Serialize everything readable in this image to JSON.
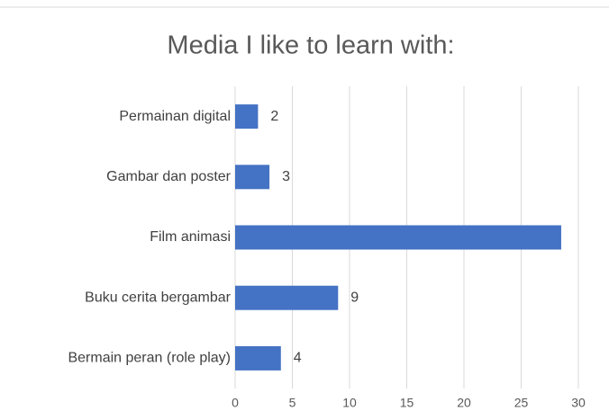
{
  "chart_data": {
    "type": "barh",
    "title": "Media I like to learn with:",
    "categories": [
      "Permainan digital",
      "Gambar dan poster",
      "Film animasi",
      "Buku cerita bergambar",
      "Bermain peran (role play)"
    ],
    "values": [
      2,
      3,
      28.5,
      9,
      4
    ],
    "value_labels": [
      "2",
      "3",
      null,
      "9",
      "4"
    ],
    "color": "#4472c4",
    "xlim": [
      0,
      30
    ],
    "xticks": [
      0,
      5,
      10,
      15,
      20,
      25,
      30
    ],
    "grid": true
  }
}
